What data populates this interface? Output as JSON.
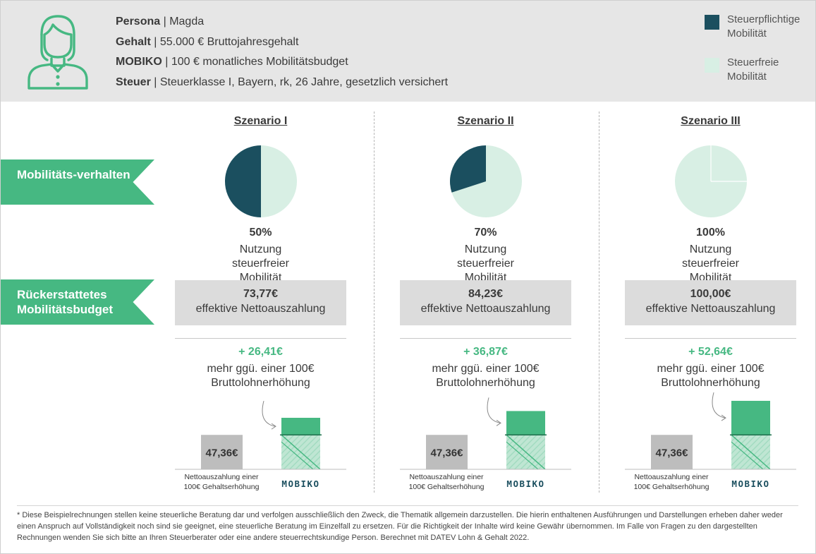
{
  "persona": [
    {
      "key": "Persona",
      "sep": " | ",
      "value": "Magda"
    },
    {
      "key": "Gehalt",
      "sep": " | ",
      "value": "55.000 € Bruttojahresgehalt"
    },
    {
      "key": "MOBIKO",
      "sep": " | ",
      "value": "100 € monatliches Mobilitätsbudget"
    },
    {
      "key": "Steuer",
      "sep": " | ",
      "value": "Steuerklasse I, Bayern, rk, 26 Jahre, gesetzlich versichert"
    }
  ],
  "legend": {
    "taxable": {
      "label": "Steuerpflichtige Mobilität",
      "color": "#1b4f5f"
    },
    "taxfree": {
      "label": "Steuerfreie Mobilität",
      "color": "#d8efe4"
    }
  },
  "ribbons": {
    "behaviour": "Mobilitäts-verhalten",
    "budget": "Rückerstattetes Mobilitätsbudget"
  },
  "colors": {
    "accent": "#46b882",
    "grey_bar": "#bdbdbd"
  },
  "common_labels": {
    "pct_label": "Nutzung steuerfreier Mobilität",
    "net_label": "effektive Nettoauszahlung",
    "more_label": "mehr ggü. einer 100€ Bruttolohnerhöhung",
    "bar_left_label": "Nettoauszahlung einer 100€ Gehaltserhöhung",
    "bar_right_label": "MOBIKO"
  },
  "chart_data": [
    {
      "type": "pie",
      "title": "Szenario I",
      "taxfree_share": 50,
      "pct_text": "50%",
      "net_payout": 73.77,
      "net_text": "73,77€",
      "gain_text": "+ 26,41€",
      "salary_net": 47.36,
      "salary_net_text": "47,36€",
      "gain": 26.41
    },
    {
      "type": "pie",
      "title": "Szenario II",
      "taxfree_share": 70,
      "pct_text": "70%",
      "net_payout": 84.23,
      "net_text": "84,23€",
      "gain_text": "+ 36,87€",
      "salary_net": 47.36,
      "salary_net_text": "47,36€",
      "gain": 36.87
    },
    {
      "type": "pie",
      "title": "Szenario III",
      "taxfree_share": 100,
      "pct_text": "100%",
      "net_payout": 100.0,
      "net_text": "100,00€",
      "gain_text": "+ 52,64€",
      "salary_net": 47.36,
      "salary_net_text": "47,36€",
      "gain": 52.64
    }
  ],
  "footnote": "* Diese Beispielrechnungen stellen keine steuerliche Beratung dar und verfolgen ausschließlich den Zweck, die Thematik allgemein darzustellen. Die hierin enthaltenen Ausführungen und Darstellungen erheben daher weder einen Anspruch auf Vollständigkeit noch sind sie geeignet, eine steuerliche Beratung im Einzelfall zu ersetzen. Für die Richtigkeit der Inhalte wird keine Gewähr übernommen. Im Falle von Fragen zu den dargestellten Rechnungen wenden Sie sich bitte an Ihren Steuerberater oder eine andere steuerrechtskundige Person. Berechnet mit DATEV Lohn & Gehalt 2022."
}
